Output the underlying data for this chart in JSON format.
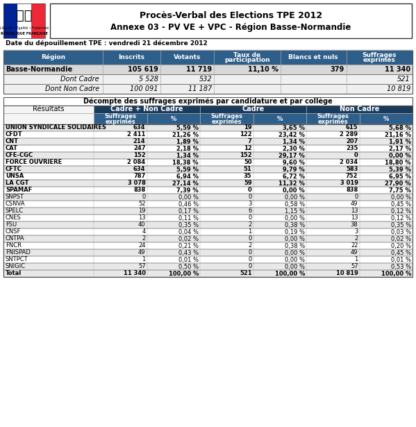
{
  "title_line1": "Procès-Verbal des Elections TPE 2012",
  "title_line2": "Annexe 03 - PV VE + VPC - Région Basse-Normandie",
  "date_text": "Date du dépouillement TPE : vendredi 21 décembre 2012",
  "top_table_headers": [
    "Région",
    "Inscrits",
    "Votants",
    "Taux de\nparticipation",
    "Blancs et nuls",
    "Suffrages\nexprimés"
  ],
  "top_table_rows": [
    [
      "Basse-Normandie",
      "105 619",
      "11 719",
      "11,10 %",
      "379",
      "11 340"
    ],
    [
      "Dont Cadre",
      "5 528",
      "532",
      "",
      "",
      "521"
    ],
    [
      "Dont Non Cadre",
      "100 091",
      "11 187",
      "",
      "",
      "10 819"
    ]
  ],
  "main_table_title": "Décompte des suffrages exprimés par candidature et par collège",
  "main_col_groups": [
    "Cadre + Non Cadre",
    "Cadre",
    "Non Cadre"
  ],
  "main_col_subheaders": [
    "Suffrages\nexprimés",
    "%",
    "Suffrages\nexprimés",
    "%",
    "Suffrages\nexprimés",
    "%"
  ],
  "main_rows": [
    [
      "UNION SYNDICALE SOLIDAIRES",
      "634",
      "5,59 %",
      "19",
      "3,65 %",
      "615",
      "5,68 %"
    ],
    [
      "CFDT",
      "2 411",
      "21,26 %",
      "122",
      "23,42 %",
      "2 289",
      "21,16 %"
    ],
    [
      "CNT",
      "214",
      "1,89 %",
      "7",
      "1,34 %",
      "207",
      "1,91 %"
    ],
    [
      "CAT",
      "247",
      "2,18 %",
      "12",
      "2,30 %",
      "235",
      "2,17 %"
    ],
    [
      "CFE-CGC",
      "152",
      "1,34 %",
      "152",
      "29,17 %",
      "0",
      "0,00 %"
    ],
    [
      "FORCE OUVRIERE",
      "2 084",
      "18,38 %",
      "50",
      "9,60 %",
      "2 034",
      "18,80 %"
    ],
    [
      "CFTC",
      "634",
      "5,59 %",
      "51",
      "9,79 %",
      "583",
      "5,39 %"
    ],
    [
      "UNSA",
      "787",
      "6,94 %",
      "35",
      "6,72 %",
      "752",
      "6,95 %"
    ],
    [
      "LA CGT",
      "3 078",
      "27,14 %",
      "59",
      "11,32 %",
      "3 019",
      "27,90 %"
    ],
    [
      "SPAMAF",
      "838",
      "7,39 %",
      "0",
      "0,00 %",
      "838",
      "7,75 %"
    ],
    [
      "SNPST",
      "0",
      "0,00 %",
      "0",
      "0,00 %",
      "0",
      "0,00 %"
    ],
    [
      "CSNVA",
      "52",
      "0,46 %",
      "3",
      "0,58 %",
      "49",
      "0,45 %"
    ],
    [
      "SPELC",
      "19",
      "0,17 %",
      "6",
      "1,15 %",
      "13",
      "0,12 %"
    ],
    [
      "CNES",
      "13",
      "0,11 %",
      "0",
      "0,00 %",
      "13",
      "0,12 %"
    ],
    [
      "FSU",
      "40",
      "0,35 %",
      "2",
      "0,38 %",
      "38",
      "0,35 %"
    ],
    [
      "CNSF",
      "4",
      "0,04 %",
      "1",
      "0,19 %",
      "3",
      "0,03 %"
    ],
    [
      "CNTPA",
      "2",
      "0,02 %",
      "0",
      "0,00 %",
      "2",
      "0,02 %"
    ],
    [
      "FNCR",
      "24",
      "0,21 %",
      "2",
      "0,38 %",
      "22",
      "0,20 %"
    ],
    [
      "FNISPAD",
      "49",
      "0,43 %",
      "0",
      "0,00 %",
      "49",
      "0,45 %"
    ],
    [
      "SNTPCT",
      "1",
      "0,01 %",
      "0",
      "0,00 %",
      "1",
      "0,01 %"
    ],
    [
      "SNIGIC",
      "57",
      "0,50 %",
      "0",
      "0,00 %",
      "57",
      "0,53 %"
    ],
    [
      "Total",
      "11 340",
      "100,00 %",
      "521",
      "100,00 %",
      "10 819",
      "100,00 %"
    ]
  ],
  "header_bg": "#1a3a5c",
  "header_fg": "#ffffff",
  "subheader_bg": "#2e5f8a",
  "row_alt1": "#e8e8e8",
  "row_alt2": "#ffffff",
  "bold_row_bg": "#d0d0d0",
  "top_header_bg": "#2e5f8a",
  "total_row_bg": "#e8e8e8"
}
